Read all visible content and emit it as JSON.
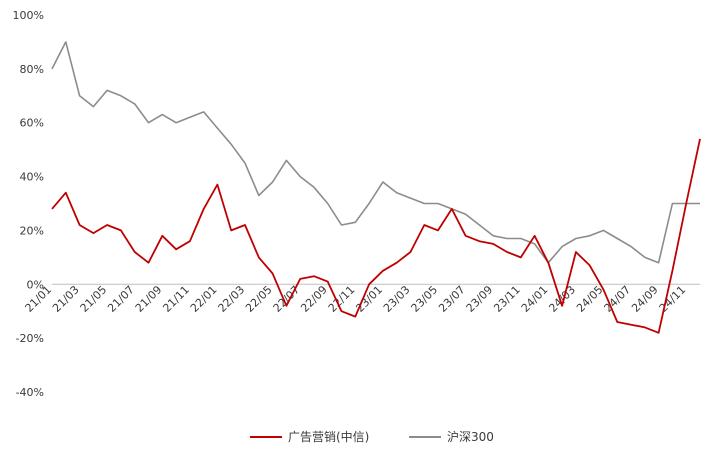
{
  "chart_data": {
    "type": "line",
    "ylim": [
      -40,
      100
    ],
    "yticks": [
      -40,
      -20,
      0,
      20,
      40,
      60,
      80,
      100
    ],
    "ytick_labels": [
      "-40%",
      "-20%",
      "0%",
      "20%",
      "40%",
      "60%",
      "80%",
      "100%"
    ],
    "x_tick_labels": [
      "21/01",
      "21/03",
      "21/05",
      "21/07",
      "21/09",
      "21/11",
      "22/01",
      "22/03",
      "22/05",
      "22/07",
      "22/09",
      "22/11",
      "23/01",
      "23/03",
      "23/05",
      "23/07",
      "23/09",
      "23/11",
      "24/01",
      "24/03",
      "24/05",
      "24/07",
      "24/09",
      "24/11"
    ],
    "legend_position": "bottom",
    "grid": false,
    "series": [
      {
        "name": "广告营销(中信)",
        "color": "#c00000",
        "x": [
          "21/01",
          "21/02",
          "21/03",
          "21/04",
          "21/05",
          "21/06",
          "21/07",
          "21/08",
          "21/09",
          "21/10",
          "21/11",
          "21/12",
          "22/01",
          "22/02",
          "22/03",
          "22/04",
          "22/05",
          "22/06",
          "22/07",
          "22/08",
          "22/09",
          "22/10",
          "22/11",
          "22/12",
          "23/01",
          "23/02",
          "23/03",
          "23/04",
          "23/05",
          "23/06",
          "23/07",
          "23/08",
          "23/09",
          "23/10",
          "23/11",
          "23/12",
          "24/01",
          "24/02",
          "24/03",
          "24/04",
          "24/05",
          "24/06",
          "24/07",
          "24/08",
          "24/09",
          "24/10",
          "24/11",
          "24/12"
        ],
        "values": [
          28,
          34,
          22,
          19,
          22,
          20,
          12,
          8,
          18,
          13,
          16,
          28,
          37,
          20,
          22,
          10,
          4,
          -8,
          2,
          3,
          1,
          -10,
          -12,
          0,
          5,
          8,
          12,
          22,
          20,
          28,
          18,
          16,
          15,
          12,
          10,
          18,
          8,
          -8,
          12,
          7,
          -2,
          -14,
          -15,
          -16,
          -18,
          5,
          30,
          54
        ]
      },
      {
        "name": "沪深300",
        "color": "#8c8c8c",
        "x": [
          "21/01",
          "21/02",
          "21/03",
          "21/04",
          "21/05",
          "21/06",
          "21/07",
          "21/08",
          "21/09",
          "21/10",
          "21/11",
          "21/12",
          "22/01",
          "22/02",
          "22/03",
          "22/04",
          "22/05",
          "22/06",
          "22/07",
          "22/08",
          "22/09",
          "22/10",
          "22/11",
          "22/12",
          "23/01",
          "23/02",
          "23/03",
          "23/04",
          "23/05",
          "23/06",
          "23/07",
          "23/08",
          "23/09",
          "23/10",
          "23/11",
          "23/12",
          "24/01",
          "24/02",
          "24/03",
          "24/04",
          "24/05",
          "24/06",
          "24/07",
          "24/08",
          "24/09",
          "24/10",
          "24/11",
          "24/12"
        ],
        "values": [
          80,
          90,
          70,
          66,
          72,
          70,
          67,
          60,
          63,
          60,
          62,
          64,
          58,
          52,
          45,
          33,
          38,
          46,
          40,
          36,
          30,
          22,
          23,
          30,
          38,
          34,
          32,
          30,
          30,
          28,
          26,
          22,
          18,
          17,
          17,
          15,
          8,
          14,
          17,
          18,
          20,
          17,
          14,
          10,
          8,
          30,
          30,
          30
        ]
      }
    ]
  }
}
